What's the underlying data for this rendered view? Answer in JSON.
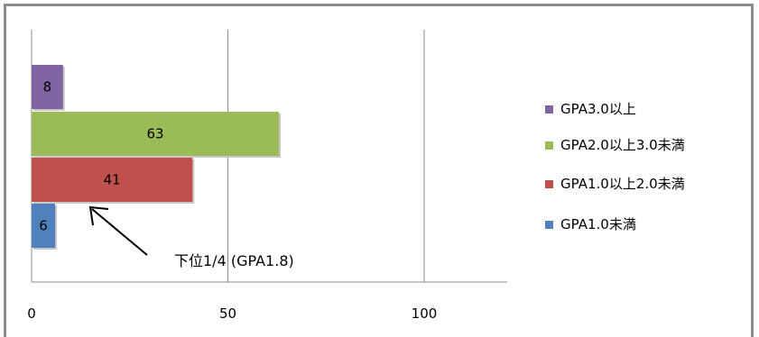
{
  "chart_data": {
    "type": "bar",
    "orientation": "horizontal",
    "categories": [
      "GPA3.0以上",
      "GPA2.0以上3.0未満",
      "GPA1.0以上2.0未満",
      "GPA1.0未満"
    ],
    "values": [
      8,
      63,
      41,
      6
    ],
    "colors": [
      "#8064a2",
      "#9bbb59",
      "#c0504d",
      "#4f81bd"
    ],
    "data_labels": [
      "8",
      "63",
      "41",
      "6"
    ],
    "xlim": [
      0,
      120
    ],
    "xticks": [
      0,
      50,
      100
    ],
    "xtick_labels": [
      "0",
      "50",
      "100"
    ],
    "grid": true,
    "legend": {
      "position": "right",
      "entries": [
        {
          "label": "GPA3.0以上",
          "color": "#8064a2"
        },
        {
          "label": "GPA2.0以上3.0未満",
          "color": "#9bbb59"
        },
        {
          "label": "GPA1.0以上2.0未満",
          "color": "#c0504d"
        },
        {
          "label": "GPA1.0未満",
          "color": "#4f81bd"
        }
      ]
    },
    "annotations": [
      {
        "text": "下位1/4  (GPA1.8)",
        "points_to_value": 15
      }
    ],
    "title": "",
    "xlabel": "",
    "ylabel": ""
  }
}
